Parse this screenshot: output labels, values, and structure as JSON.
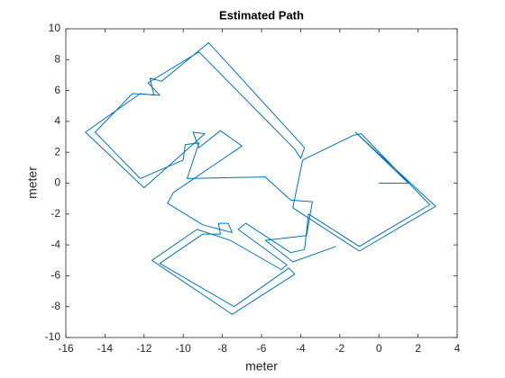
{
  "chart_data": {
    "type": "line",
    "title": "Estimated Path",
    "x_label": "meter",
    "y_label": "meter",
    "x": [
      0,
      1.5,
      -1.2,
      2.9,
      -1,
      -4.4,
      -3.9,
      -1.3,
      -0.9,
      2.6,
      -1,
      -3.6,
      -3.8,
      -4.5,
      -6.8,
      -7.2,
      -4.7,
      -5,
      -7.6,
      -9.3,
      -11.6,
      -7.5,
      -4.3,
      -4.6,
      -7.4,
      -11.2,
      -9,
      -8.1,
      -8.2,
      -7.7,
      -7.5,
      -9,
      -10.8,
      -10.5,
      -7,
      -8.1,
      -9.2,
      -9.5,
      -8.9,
      -12,
      -15,
      -12.2,
      -11.5,
      -11.7,
      -11.1,
      -8.7,
      -3.8,
      -4,
      -4.3,
      -9.2,
      -11.8,
      -11.2,
      -12.6,
      -14.5,
      -12.2,
      -10,
      -9.9,
      -9.2,
      -9.8,
      -5.8,
      -5.3,
      -4.5,
      -3.4,
      -3.7,
      -5.8,
      -4.4,
      -2.2
    ],
    "values": [
      0,
      0,
      3.3,
      -1.5,
      -4.4,
      -1.6,
      1.5,
      3.1,
      3.2,
      -1.4,
      -4.1,
      -2,
      -4.3,
      -4.5,
      -2.6,
      -3,
      -5.3,
      -5.6,
      -3.7,
      -3,
      -5,
      -8.5,
      -5.9,
      -5.5,
      -8,
      -5.2,
      -3.3,
      -3.3,
      -2.6,
      -2.6,
      -3.2,
      -2.7,
      -1.3,
      -0.6,
      2.4,
      3.4,
      2.3,
      3.3,
      3.2,
      -0.3,
      3.3,
      5.8,
      5.7,
      6.8,
      6.6,
      9.1,
      2.3,
      1.6,
      2.2,
      8.5,
      6.5,
      5.7,
      5.8,
      3.3,
      0.3,
      1.5,
      2.5,
      2.6,
      0.3,
      0.4,
      -0.2,
      -1.1,
      -1.2,
      -3.4,
      -3.7,
      -5.1,
      -4.1
    ],
    "color": "#0072BD",
    "xlim": [
      -16,
      4
    ],
    "xticks": [
      -16,
      -14,
      -12,
      -10,
      -8,
      -6,
      -4,
      -2,
      0,
      2,
      4
    ],
    "ylim": [
      -10,
      10
    ],
    "yticks": [
      -10,
      -8,
      -6,
      -4,
      -2,
      0,
      2,
      4,
      6,
      8,
      10
    ],
    "grid": false
  }
}
